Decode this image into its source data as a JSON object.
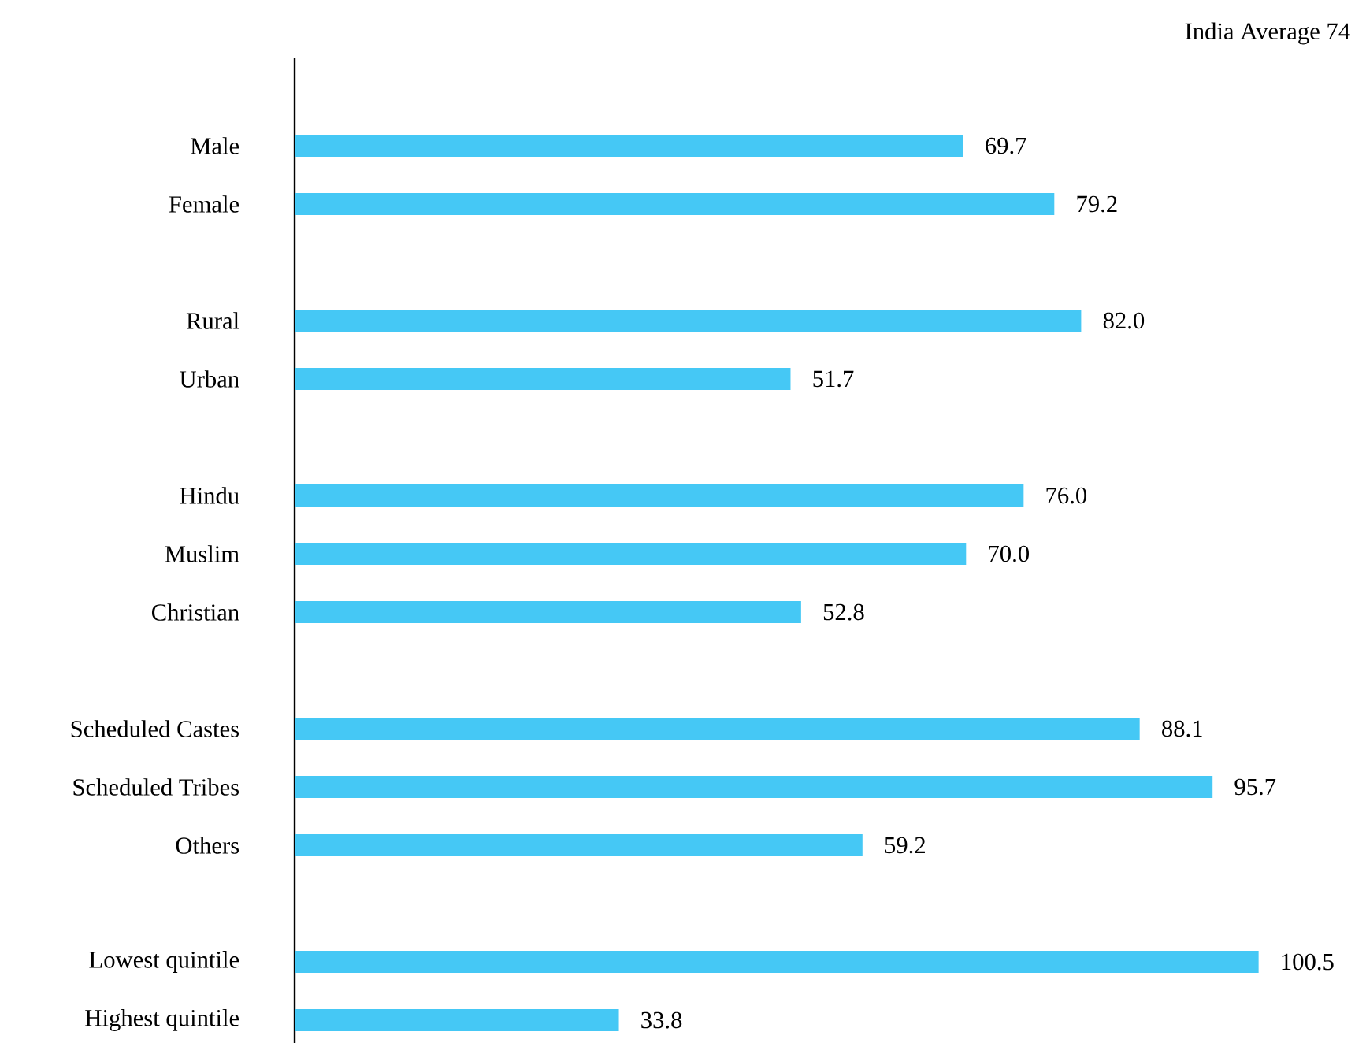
{
  "chart_data": {
    "type": "bar",
    "orientation": "horizontal",
    "categories": [
      null,
      "Male",
      "Female",
      null,
      "Rural",
      "Urban",
      null,
      "Hindu",
      "Muslim",
      "Christian",
      null,
      "Scheduled Castes",
      "Scheduled Tribes",
      "Others",
      null,
      "Lowest quintile",
      "Highest quintile"
    ],
    "values": [
      null,
      69.7,
      79.2,
      null,
      82.0,
      51.7,
      null,
      76.0,
      70.0,
      52.8,
      null,
      88.1,
      95.7,
      59.2,
      null,
      100.5,
      33.8
    ],
    "value_labels": [
      null,
      "69.7",
      "79.2",
      null,
      "82.0",
      "51.7",
      null,
      "76.0",
      "70.0",
      "52.8",
      null,
      "88.1",
      "95.7",
      "59.2",
      null,
      "100.5",
      "33.8"
    ],
    "color": "#45c8f5",
    "tick_labels": "y",
    "annotations": [
      "India Average 74"
    ]
  }
}
